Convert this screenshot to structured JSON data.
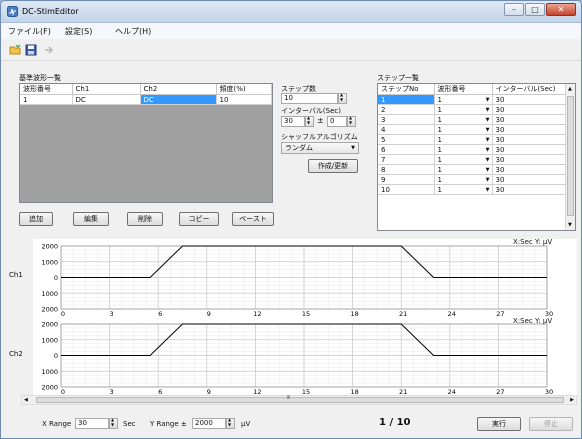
{
  "window": {
    "title": "DC-StimEditor",
    "minimize": "–",
    "maximize": "□",
    "close": "✕"
  },
  "menu": [
    "ファイル(F)",
    "設定(S)",
    "ヘルプ(H)"
  ],
  "toolbar_icons": [
    "open-folder-icon",
    "save-icon",
    "export-icon"
  ],
  "basis": {
    "label": "基準波形一覧",
    "columns": [
      "波形番号",
      "Ch1",
      "Ch2",
      "頻度(%)"
    ],
    "rows": [
      [
        "1",
        "DC",
        "DC",
        "10"
      ]
    ],
    "buttons": [
      "追加",
      "編集",
      "削除",
      "コピー",
      "ペースト"
    ]
  },
  "steps": {
    "label": "ステップ数",
    "value": "10",
    "interval_label": "インターバル(Sec)",
    "interval_value": "30",
    "pm": "±",
    "jitter_value": "0",
    "shuffle_label": "シャッフルアルゴリズム",
    "shuffle_value": "ランダム",
    "create_button": "作成/更新"
  },
  "step_list": {
    "label": "ステップ一覧",
    "columns": [
      "ステップNo",
      "波形番号",
      "インターバル(Sec)"
    ],
    "rows": [
      [
        "1",
        "1",
        "30"
      ],
      [
        "2",
        "1",
        "30"
      ],
      [
        "3",
        "1",
        "30"
      ],
      [
        "4",
        "1",
        "30"
      ],
      [
        "5",
        "1",
        "30"
      ],
      [
        "6",
        "1",
        "30"
      ],
      [
        "7",
        "1",
        "30"
      ],
      [
        "8",
        "1",
        "30"
      ],
      [
        "9",
        "1",
        "30"
      ],
      [
        "10",
        "1",
        "30"
      ]
    ]
  },
  "charts": {
    "unit_label": "X:Sec Y: µV",
    "scroll_mark": "Ⅲ"
  },
  "chart_data": [
    {
      "type": "line",
      "series": [
        {
          "name": "Ch1",
          "x": [
            0,
            5.5,
            7.5,
            21,
            23,
            30
          ],
          "y": [
            0,
            0,
            2000,
            2000,
            0,
            0
          ]
        }
      ],
      "xlim": [
        0,
        30
      ],
      "ylim": [
        -2000,
        2000
      ],
      "xticks": [
        "0",
        "3",
        "6",
        "9",
        "12",
        "15",
        "18",
        "21",
        "24",
        "27",
        "30"
      ],
      "yticks": [
        "2000",
        "1000",
        "0",
        "1000",
        "2000"
      ],
      "ylabel": "Ch1",
      "grid": true
    },
    {
      "type": "line",
      "series": [
        {
          "name": "Ch2",
          "x": [
            0,
            5.5,
            7.5,
            21,
            23,
            30
          ],
          "y": [
            0,
            0,
            2000,
            2000,
            0,
            0
          ]
        }
      ],
      "xlim": [
        0,
        30
      ],
      "ylim": [
        -2000,
        2000
      ],
      "xticks": [
        "0",
        "3",
        "6",
        "9",
        "12",
        "15",
        "18",
        "21",
        "24",
        "27",
        "30"
      ],
      "yticks": [
        "2000",
        "1000",
        "0",
        "1000",
        "2000"
      ],
      "ylabel": "Ch2",
      "grid": true
    }
  ],
  "footer": {
    "xrange_label": "X Range",
    "xrange_value": "30",
    "sec_label": "Sec",
    "yrange_label": "Y Range ±",
    "yrange_value": "2000",
    "uv_label": "µV",
    "page": "1 / 10",
    "run_button": "実行",
    "stop_button": "停止"
  },
  "colors": {
    "selection": "#3399ff",
    "titlebar": "#c3d4e8",
    "close": "#c7432a"
  }
}
